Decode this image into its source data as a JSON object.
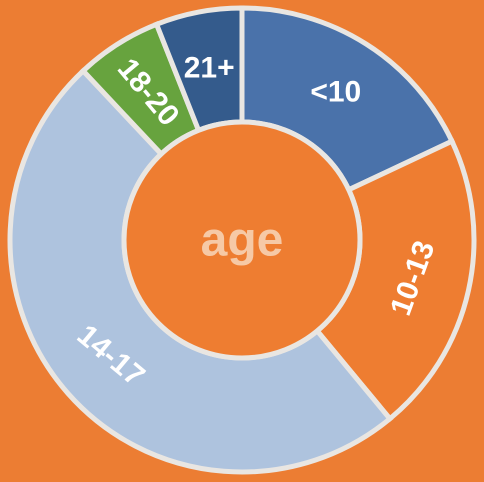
{
  "chart_data": {
    "type": "donut",
    "title": "age",
    "categories": [
      "<10",
      "10-13",
      "14-17",
      "18-20",
      "21+"
    ],
    "values": [
      18,
      21,
      49,
      6,
      6
    ],
    "colors": [
      "#4a72aa",
      "#ee7d31",
      "#aec3de",
      "#67a33e",
      "#345b8c"
    ]
  }
}
